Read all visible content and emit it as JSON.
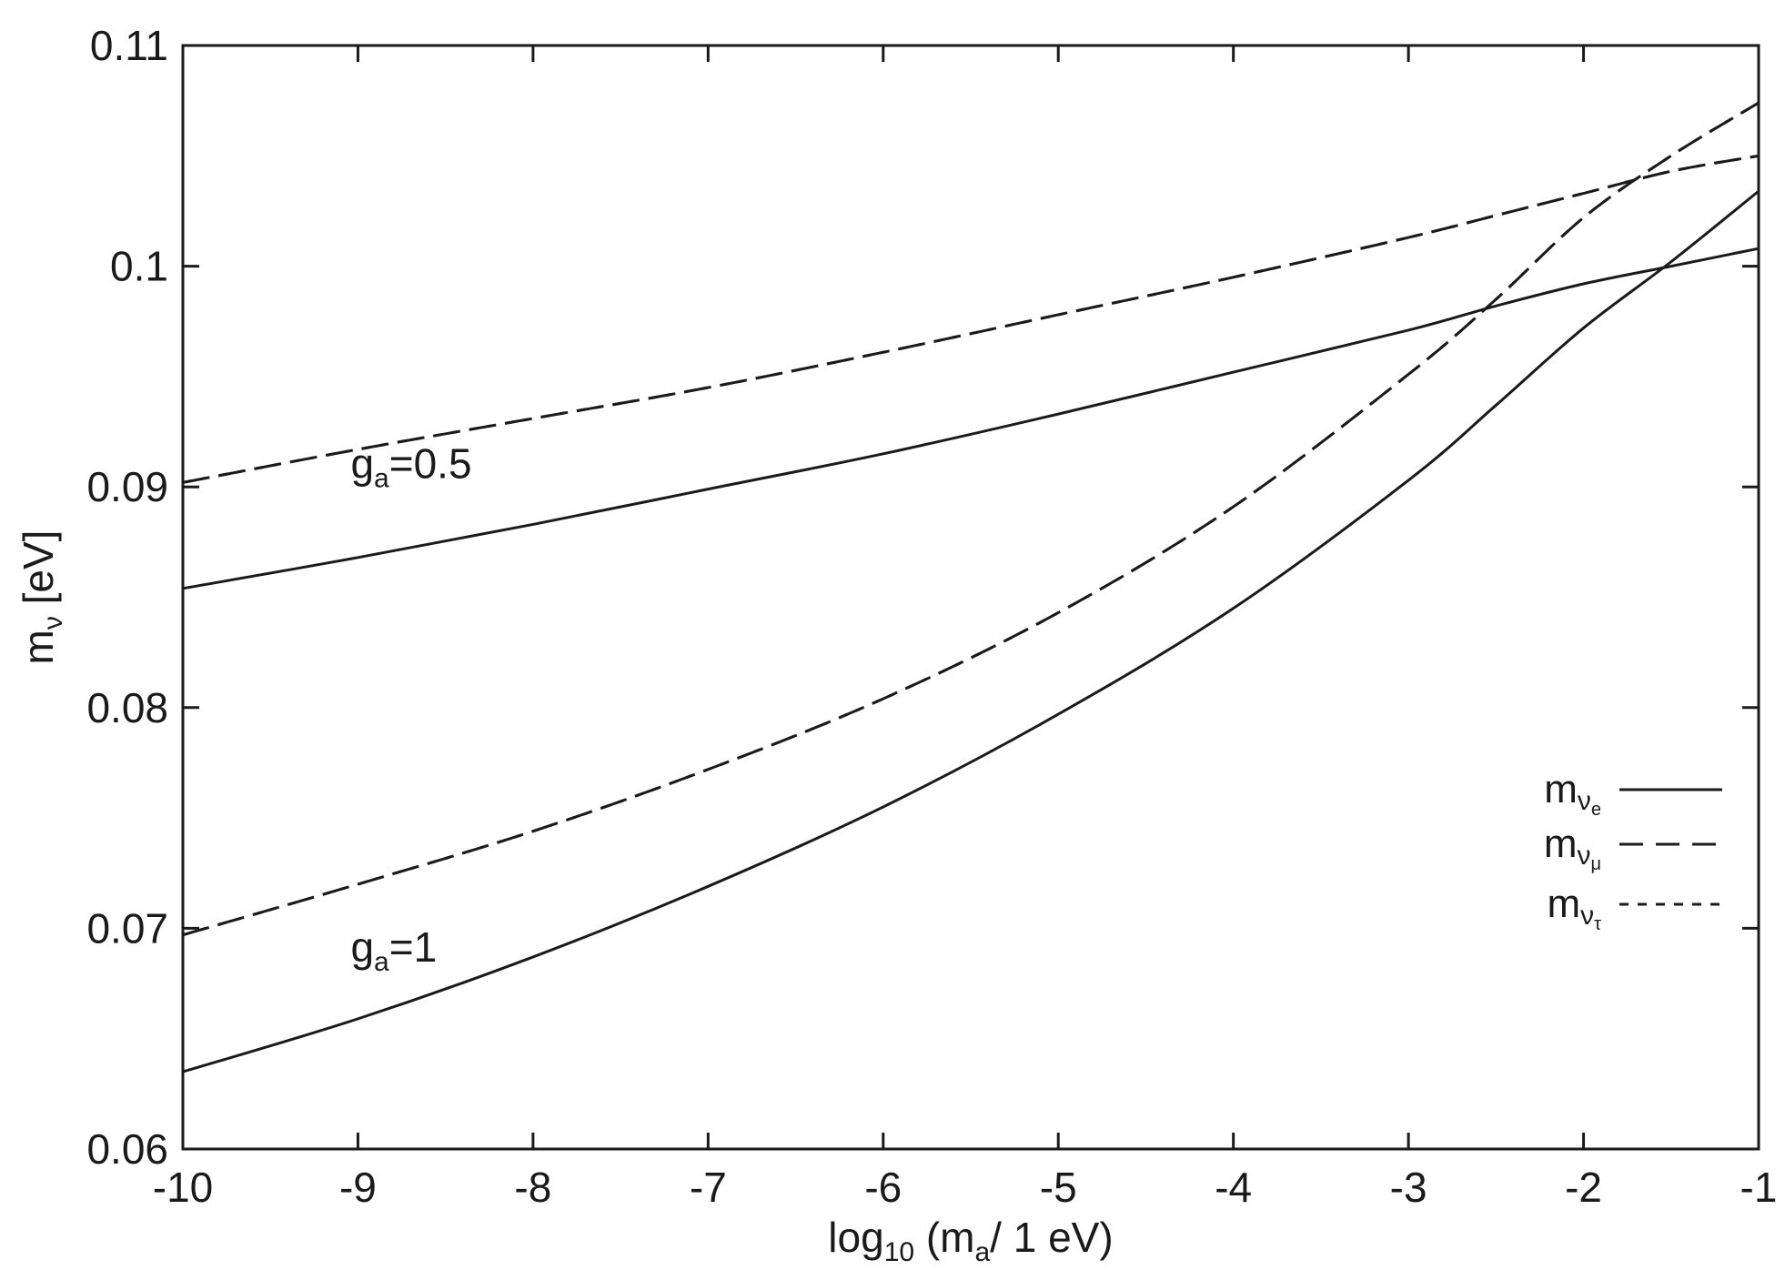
{
  "chart_data": {
    "type": "line",
    "xlabel": {
      "main": "log",
      "sub": "10",
      "rest": " (m",
      "sub2": "a",
      "tail": "/ 1 eV)"
    },
    "ylabel": {
      "main": "m",
      "sub": "ν",
      "tail": " [eV]"
    },
    "xlim": [
      -10,
      -1
    ],
    "ylim": [
      0.06,
      0.11
    ],
    "x_ticks": [
      -10,
      -9,
      -8,
      -7,
      -6,
      -5,
      -4,
      -3,
      -2,
      -1
    ],
    "x_tick_labels": [
      "-10",
      "-9",
      "-8",
      "-7",
      "-6",
      "-5",
      "-4",
      "-3",
      "-2",
      "-1"
    ],
    "y_ticks": [
      0.06,
      0.07,
      0.08,
      0.09,
      0.1,
      0.11
    ],
    "y_tick_labels": [
      "0.06",
      "0.07",
      "0.08",
      "0.09",
      "0.1",
      "0.11"
    ],
    "grid": false,
    "legend_position": "right",
    "legend": [
      {
        "main": "m",
        "sub": "ν",
        "subsub": "e",
        "style": "solid"
      },
      {
        "main": "m",
        "sub": "ν",
        "subsub": "μ",
        "style": "dashed"
      },
      {
        "main": "m",
        "sub": "ν",
        "subsub": "τ",
        "style": "dotted"
      }
    ],
    "annotations": [
      {
        "main": "g",
        "sub": "a",
        "tail": "=0.5",
        "x": -9.0,
        "y": 0.0904
      },
      {
        "main": "g",
        "sub": "a",
        "tail": "=1",
        "x": -9.0,
        "y": 0.0685
      }
    ],
    "x": [
      -10,
      -9,
      -8,
      -7,
      -6,
      -5,
      -4,
      -3,
      -2.5,
      -2,
      -1.5,
      -1
    ],
    "groups": [
      {
        "group": "g_a=0.5",
        "series": [
          {
            "flavor": "e",
            "style": "solid",
            "values": [
              0.0854,
              0.0868,
              0.0883,
              0.0899,
              0.0915,
              0.0933,
              0.0952,
              0.0971,
              0.0982,
              0.0992,
              0.1,
              0.1008
            ]
          },
          {
            "flavor": "mu",
            "style": "dashed",
            "values": [
              0.0902,
              0.0917,
              0.0931,
              0.0945,
              0.0961,
              0.0978,
              0.0995,
              0.1013,
              0.1023,
              0.1033,
              0.1043,
              0.105
            ]
          },
          {
            "flavor": "tau",
            "style": "dotted",
            "values": [
              0.0902,
              0.0917,
              0.0931,
              0.0945,
              0.0961,
              0.0978,
              0.0995,
              0.1013,
              0.1023,
              0.1033,
              0.1043,
              0.105
            ]
          }
        ]
      },
      {
        "group": "g_a=1",
        "series": [
          {
            "flavor": "e",
            "style": "solid",
            "values": [
              0.0635,
              0.0659,
              0.0687,
              0.0719,
              0.0755,
              0.0797,
              0.0845,
              0.0903,
              0.0937,
              0.0972,
              0.1002,
              0.1034
            ]
          },
          {
            "flavor": "mu",
            "style": "dashed",
            "values": [
              0.0697,
              0.072,
              0.0744,
              0.0772,
              0.0804,
              0.0843,
              0.0891,
              0.0951,
              0.0985,
              0.1022,
              0.105,
              0.1074
            ]
          },
          {
            "flavor": "tau",
            "style": "dotted",
            "values": [
              0.0697,
              0.072,
              0.0744,
              0.0772,
              0.0804,
              0.0843,
              0.0891,
              0.0951,
              0.0985,
              0.1022,
              0.105,
              0.1074
            ]
          }
        ]
      }
    ]
  }
}
